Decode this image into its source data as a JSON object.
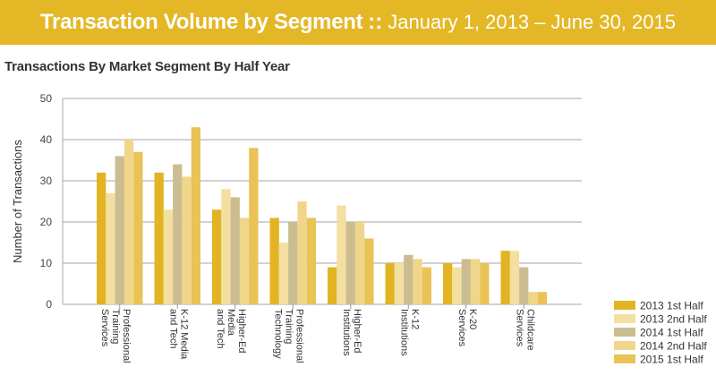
{
  "header": {
    "title_bold": "Transaction Volume by Segment",
    "separator": "::",
    "date_range": "January 1, 2013 – June 30, 2015"
  },
  "colors": {
    "banner": "#e3b726"
  },
  "chart_data": {
    "type": "bar",
    "title": "Transactions By Market Segment By Half Year",
    "xlabel": "",
    "ylabel": "Number of Transactions",
    "ylim": [
      0,
      50
    ],
    "yticks": [
      0,
      10,
      20,
      30,
      40,
      50
    ],
    "grid": true,
    "legend_position": "bottom-right",
    "categories": [
      [
        "Professional",
        "Training",
        "Services"
      ],
      [
        "K-12 Media",
        "and Tech"
      ],
      [
        "Higher-Ed",
        "Media",
        "and Tech"
      ],
      [
        "Professional",
        "Training",
        "Technology"
      ],
      [
        "Higher-Ed",
        "Institutions"
      ],
      [
        "K-12",
        "Institutions"
      ],
      [
        "K-20",
        "Services"
      ],
      [
        "Childcare",
        "Services"
      ]
    ],
    "series": [
      {
        "name": "2013 1st Half",
        "color": "#e2b424",
        "values": [
          32,
          32,
          23,
          21,
          9,
          10,
          10,
          13
        ]
      },
      {
        "name": "2013 2nd Half",
        "color": "#f3dfa0",
        "values": [
          27,
          23,
          28,
          15,
          24,
          10,
          9,
          13
        ]
      },
      {
        "name": "2014 1st Half",
        "color": "#cbbd91",
        "values": [
          36,
          34,
          26,
          20,
          20,
          12,
          11,
          9
        ]
      },
      {
        "name": "2014 2nd Half",
        "color": "#f0d68a",
        "values": [
          40,
          31,
          21,
          25,
          20,
          11,
          11,
          3
        ]
      },
      {
        "name": "2015 1st Half",
        "color": "#e9c355",
        "values": [
          37,
          43,
          38,
          21,
          16,
          9,
          10,
          3
        ]
      }
    ]
  }
}
